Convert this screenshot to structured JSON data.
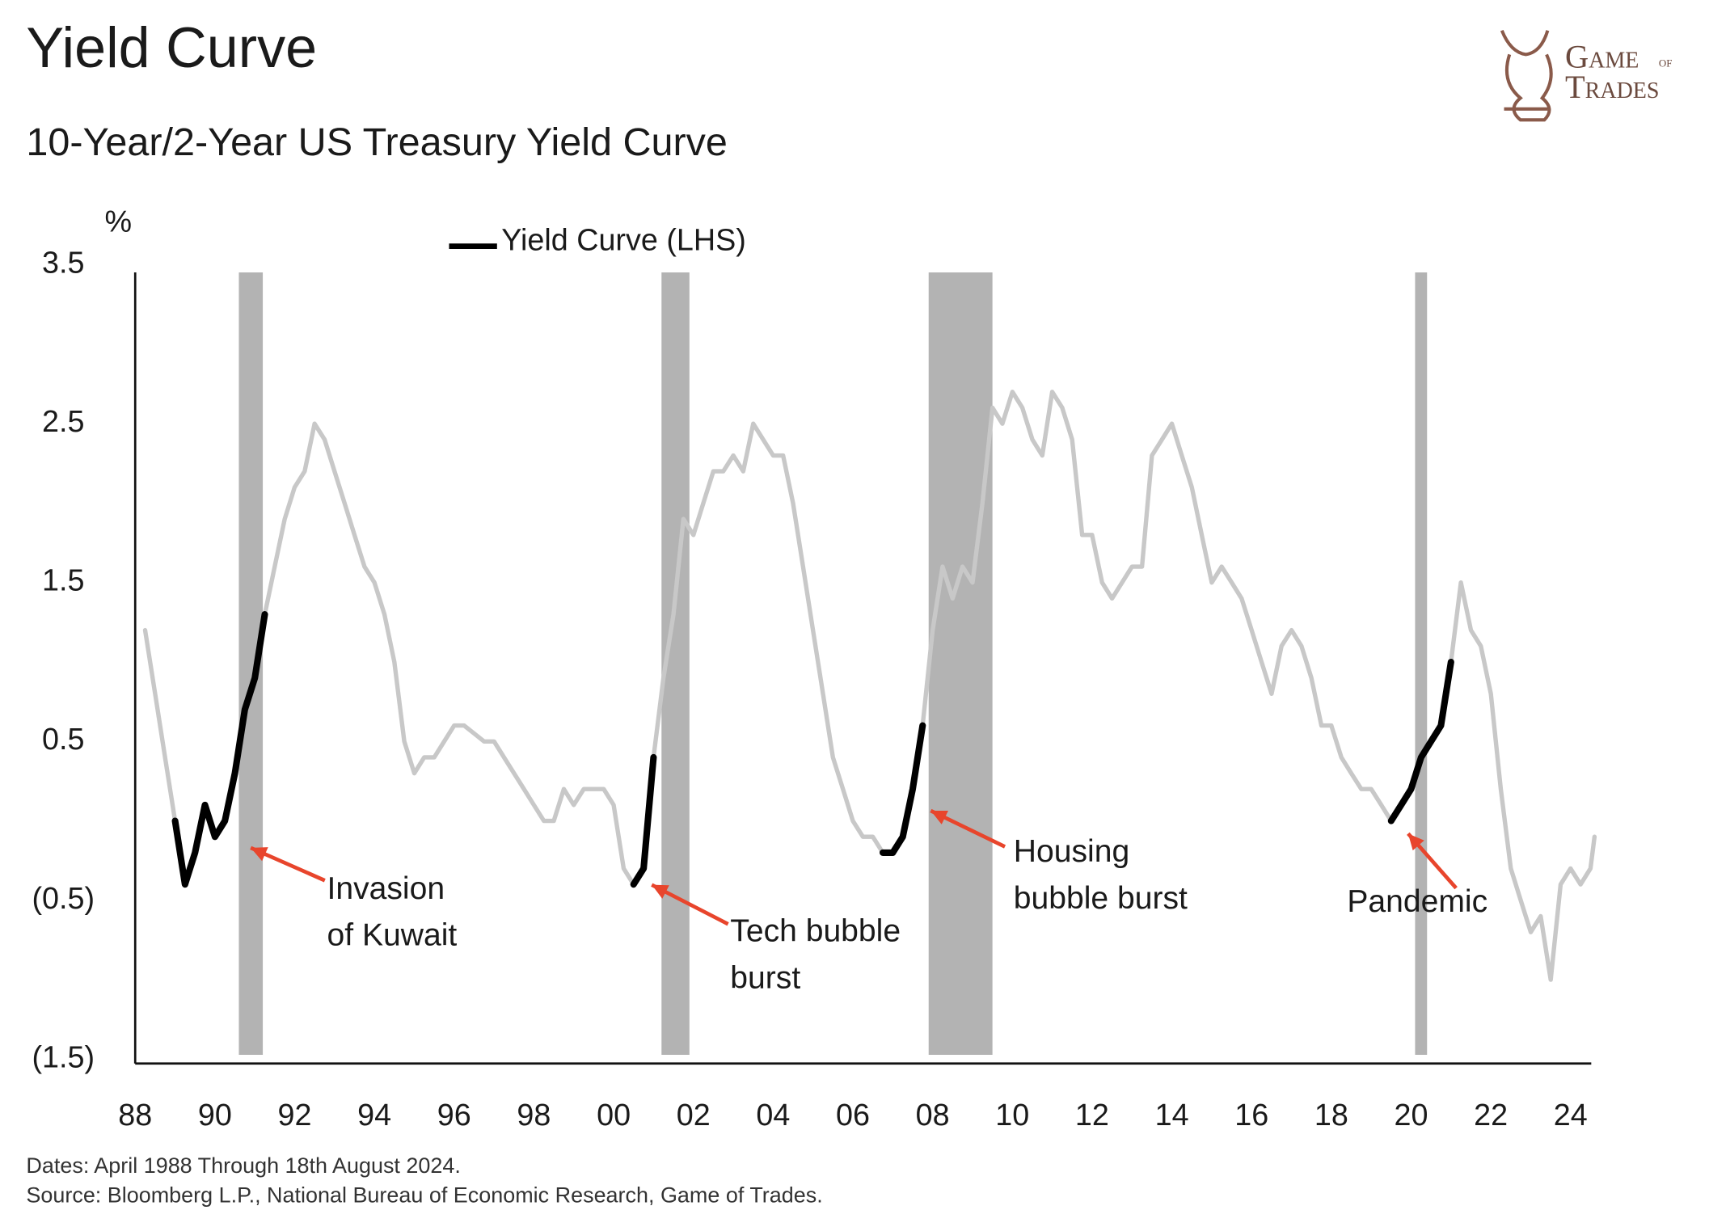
{
  "chart_data": {
    "type": "line",
    "title": "Yield Curve",
    "subtitle": "10-Year/2-Year US Treasury Yield Curve",
    "y_label": "%",
    "logo": [
      "Game",
      "of",
      "Trades"
    ],
    "footnotes": [
      "Dates: April 1988 Through 18th August 2024.",
      "Source: Bloomberg L.P., National Bureau of Economic Research, Game of Trades."
    ],
    "xlim": [
      1988,
      2024.6
    ],
    "xticks": [
      {
        "value": 1988,
        "label": "88"
      },
      {
        "value": 1990,
        "label": "90"
      },
      {
        "value": 1992,
        "label": "92"
      },
      {
        "value": 1994,
        "label": "94"
      },
      {
        "value": 1996,
        "label": "96"
      },
      {
        "value": 1998,
        "label": "98"
      },
      {
        "value": 2000,
        "label": "00"
      },
      {
        "value": 2002,
        "label": "02"
      },
      {
        "value": 2004,
        "label": "04"
      },
      {
        "value": 2006,
        "label": "06"
      },
      {
        "value": 2008,
        "label": "08"
      },
      {
        "value": 2010,
        "label": "10"
      },
      {
        "value": 2012,
        "label": "12"
      },
      {
        "value": 2014,
        "label": "14"
      },
      {
        "value": 2016,
        "label": "16"
      },
      {
        "value": 2018,
        "label": "18"
      },
      {
        "value": 2020,
        "label": "20"
      },
      {
        "value": 2022,
        "label": "22"
      },
      {
        "value": 2024,
        "label": "24"
      }
    ],
    "ylim": [
      -1.5,
      3.5
    ],
    "yticks": [
      {
        "value": -1.5,
        "label": "(1.5)"
      },
      {
        "value": -0.5,
        "label": "(0.5)"
      },
      0.5,
      1.5,
      2.5,
      3.5
    ],
    "recession_color": "#b3b3b3",
    "recessions": [
      {
        "start": 1990.6,
        "end": 1991.2
      },
      {
        "start": 2001.2,
        "end": 2001.9
      },
      {
        "start": 2007.9,
        "end": 2009.5
      },
      {
        "start": 2020.1,
        "end": 2020.4
      }
    ],
    "x": [
      1988.25,
      1988.5,
      1988.75,
      1989,
      1989.25,
      1989.5,
      1989.75,
      1990,
      1990.25,
      1990.5,
      1990.75,
      1991,
      1991.25,
      1991.5,
      1991.75,
      1992,
      1992.25,
      1992.5,
      1992.75,
      1993,
      1993.25,
      1993.5,
      1993.75,
      1994,
      1994.25,
      1994.5,
      1994.75,
      1995,
      1995.25,
      1995.5,
      1995.75,
      1996,
      1996.25,
      1996.5,
      1996.75,
      1997,
      1997.25,
      1997.5,
      1997.75,
      1998,
      1998.25,
      1998.5,
      1998.75,
      1999,
      1999.25,
      1999.5,
      1999.75,
      2000,
      2000.25,
      2000.5,
      2000.75,
      2001,
      2001.25,
      2001.5,
      2001.75,
      2002,
      2002.25,
      2002.5,
      2002.75,
      2003,
      2003.25,
      2003.5,
      2003.75,
      2004,
      2004.25,
      2004.5,
      2004.75,
      2005,
      2005.25,
      2005.5,
      2005.75,
      2006,
      2006.25,
      2006.5,
      2006.75,
      2007,
      2007.25,
      2007.5,
      2007.75,
      2008,
      2008.25,
      2008.5,
      2008.75,
      2009,
      2009.25,
      2009.5,
      2009.75,
      2010,
      2010.25,
      2010.5,
      2010.75,
      2011,
      2011.25,
      2011.5,
      2011.75,
      2012,
      2012.25,
      2012.5,
      2012.75,
      2013,
      2013.25,
      2013.5,
      2013.75,
      2014,
      2014.25,
      2014.5,
      2014.75,
      2015,
      2015.25,
      2015.5,
      2015.75,
      2016,
      2016.25,
      2016.5,
      2016.75,
      2017,
      2017.25,
      2017.5,
      2017.75,
      2018,
      2018.25,
      2018.5,
      2018.75,
      2019,
      2019.25,
      2019.5,
      2019.75,
      2020,
      2020.25,
      2020.5,
      2020.75,
      2021,
      2021.25,
      2021.5,
      2021.75,
      2022,
      2022.25,
      2022.5,
      2022.75,
      2023,
      2023.25,
      2023.5,
      2023.75,
      2024,
      2024.25,
      2024.5,
      2024.6
    ],
    "series": [
      {
        "color": "#c8c8c8",
        "values": [
          1.2,
          0.8,
          0.4,
          0,
          -0.4,
          -0.2,
          0.1,
          -0.1,
          0,
          0.3,
          0.7,
          0.9,
          1.3,
          1.6,
          1.9,
          2.1,
          2.2,
          2.5,
          2.4,
          2.2,
          2,
          1.8,
          1.6,
          1.5,
          1.3,
          1,
          0.5,
          0.3,
          0.4,
          0.4,
          0.5,
          0.6,
          0.6,
          0.55,
          0.5,
          0.5,
          0.4,
          0.3,
          0.2,
          0.1,
          0,
          0,
          0.2,
          0.1,
          0.2,
          0.2,
          0.2,
          0.1,
          -0.3,
          -0.4,
          -0.3,
          0.4,
          0.9,
          1.3,
          1.9,
          1.8,
          2,
          2.2,
          2.2,
          2.3,
          2.2,
          2.5,
          2.4,
          2.3,
          2.3,
          2,
          1.6,
          1.2,
          0.8,
          0.4,
          0.2,
          0,
          -0.1,
          -0.1,
          -0.2,
          -0.2,
          -0.1,
          0.2,
          0.6,
          1.2,
          1.6,
          1.4,
          1.6,
          1.5,
          2,
          2.6,
          2.5,
          2.7,
          2.6,
          2.4,
          2.3,
          2.7,
          2.6,
          2.4,
          1.8,
          1.8,
          1.5,
          1.4,
          1.5,
          1.6,
          1.6,
          2.3,
          2.4,
          2.5,
          2.3,
          2.1,
          1.8,
          1.5,
          1.6,
          1.5,
          1.4,
          1.2,
          1,
          0.8,
          1.1,
          1.2,
          1.1,
          0.9,
          0.6,
          0.6,
          0.4,
          0.3,
          0.2,
          0.2,
          0.1,
          0,
          0.1,
          0.2,
          0.4,
          0.5,
          0.6,
          1,
          1.5,
          1.2,
          1.1,
          0.8,
          0.2,
          -0.3,
          -0.5,
          -0.7,
          -0.6,
          -1,
          -0.4,
          -0.3,
          -0.4,
          -0.3,
          -0.1
        ]
      },
      {
        "name": "Yield Curve (LHS)",
        "color": "#000000",
        "values": [
          null,
          null,
          null,
          0,
          -0.4,
          -0.2,
          0.1,
          -0.1,
          0,
          0.3,
          0.7,
          0.9,
          1.3,
          null,
          null,
          null,
          null,
          null,
          null,
          null,
          null,
          null,
          null,
          null,
          null,
          null,
          null,
          null,
          null,
          null,
          null,
          null,
          null,
          null,
          null,
          null,
          null,
          null,
          null,
          null,
          null,
          null,
          null,
          null,
          null,
          null,
          null,
          null,
          null,
          -0.4,
          -0.3,
          0.4,
          null,
          null,
          null,
          null,
          null,
          null,
          null,
          null,
          null,
          null,
          null,
          null,
          null,
          null,
          null,
          null,
          null,
          null,
          null,
          null,
          null,
          null,
          -0.2,
          -0.2,
          -0.1,
          0.2,
          0.6,
          null,
          null,
          null,
          null,
          null,
          null,
          null,
          null,
          null,
          null,
          null,
          null,
          null,
          null,
          null,
          null,
          null,
          null,
          null,
          null,
          null,
          null,
          null,
          null,
          null,
          null,
          null,
          null,
          null,
          null,
          null,
          null,
          null,
          null,
          null,
          null,
          null,
          null,
          null,
          null,
          null,
          null,
          null,
          null,
          null,
          null,
          0,
          0.1,
          0.2,
          0.4,
          0.5,
          0.6,
          1,
          null,
          null,
          null,
          null,
          null,
          null,
          null,
          null,
          null,
          null,
          null,
          null,
          null,
          null,
          null
        ]
      }
    ],
    "annotations": [
      {
        "lines": [
          "Invasion",
          "of Kuwait"
        ]
      },
      {
        "lines": [
          "Tech bubble",
          "burst"
        ]
      },
      {
        "lines": [
          "Housing",
          "bubble burst"
        ]
      },
      {
        "lines": [
          "Pandemic"
        ]
      }
    ],
    "annotation_color": "#e8452c"
  }
}
